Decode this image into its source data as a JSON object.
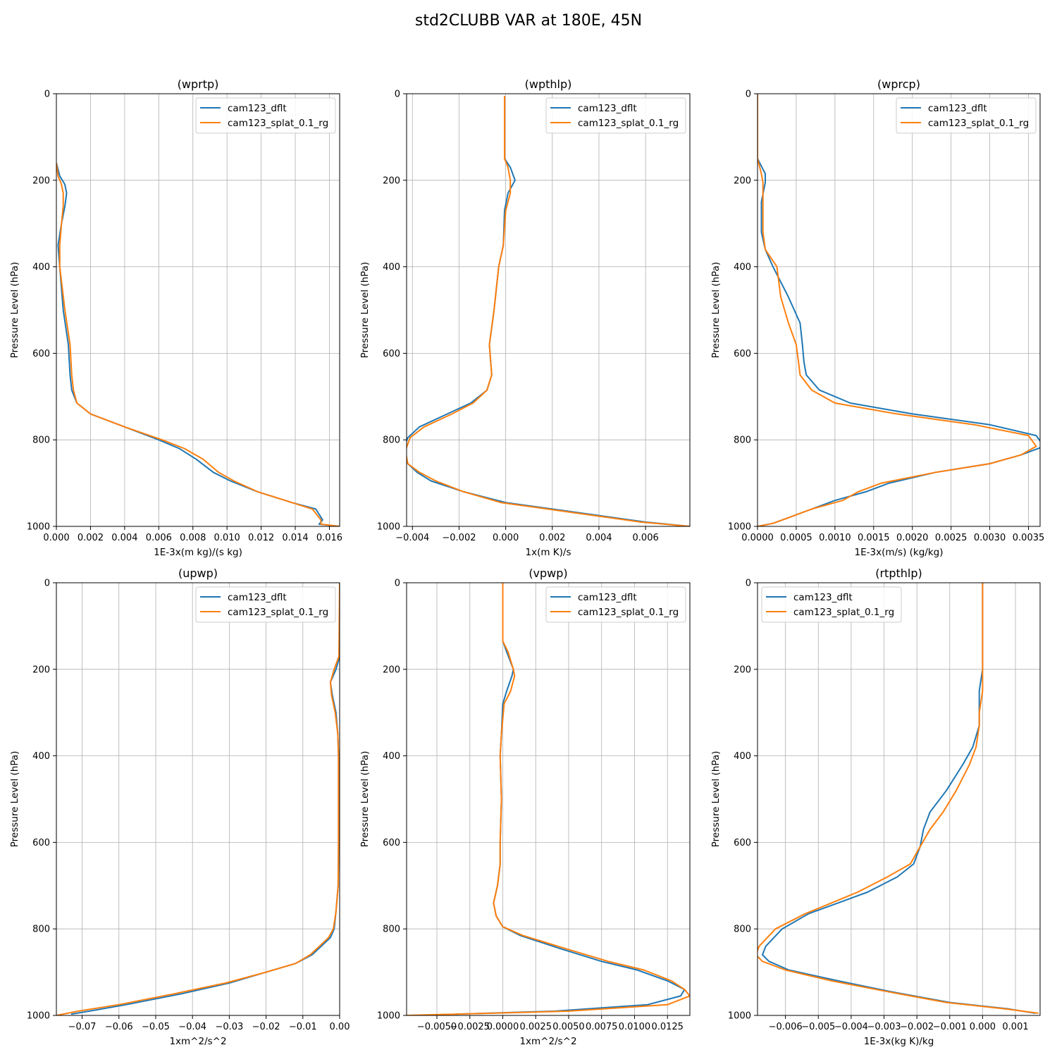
{
  "figure_title": "std2CLUBB VAR at 180E, 45N",
  "colors": {
    "dflt": "#1f77b4",
    "splat": "#ff7f0e",
    "grid": "#b0b0b0"
  },
  "chart_data": [
    {
      "type": "line",
      "title": "(wprtp)",
      "xlabel": "1E-3x(m kg)/(s kg)",
      "ylabel": "Pressure Level (hPa)",
      "xlim": [
        0.0,
        0.0166
      ],
      "ylim": [
        1000,
        0
      ],
      "xticks": [
        0.0,
        0.002,
        0.004,
        0.006,
        0.008,
        0.01,
        0.012,
        0.014,
        0.016
      ],
      "xtick_labels": [
        "0.000",
        "0.002",
        "0.004",
        "0.006",
        "0.008",
        "0.010",
        "0.012",
        "0.014",
        "0.016"
      ],
      "yticks": [
        0,
        200,
        400,
        600,
        800,
        1000
      ],
      "ytick_labels": [
        "0",
        "200",
        "400",
        "600",
        "800",
        "1000"
      ],
      "legend_loc": "upper right",
      "series": [
        {
          "name": "cam123_dflt",
          "y": [
            160,
            190,
            210,
            230,
            260,
            300,
            350,
            400,
            500,
            580,
            650,
            685,
            715,
            740,
            770,
            800,
            820,
            845,
            875,
            895,
            920,
            945,
            960,
            985,
            995,
            1000
          ],
          "x": [
            0.0,
            0.0002,
            0.0005,
            0.0006,
            0.0005,
            0.0003,
            0.0001,
            0.0002,
            0.0004,
            0.0007,
            0.0008,
            0.0009,
            0.0012,
            0.002,
            0.004,
            0.006,
            0.0072,
            0.0082,
            0.0092,
            0.0102,
            0.0118,
            0.0138,
            0.0152,
            0.0156,
            0.0154,
            0.0166
          ]
        },
        {
          "name": "cam123_splat_0.1_rg",
          "y": [
            160,
            190,
            210,
            230,
            260,
            300,
            350,
            400,
            500,
            580,
            650,
            685,
            715,
            740,
            770,
            800,
            820,
            845,
            875,
            895,
            920,
            945,
            960,
            985,
            995,
            1000
          ],
          "x": [
            0.0,
            0.0001,
            0.0003,
            0.0004,
            0.0004,
            0.0003,
            0.0002,
            0.0002,
            0.0005,
            0.0008,
            0.0009,
            0.001,
            0.0012,
            0.002,
            0.004,
            0.0062,
            0.0075,
            0.0086,
            0.0095,
            0.0104,
            0.0118,
            0.0138,
            0.015,
            0.0155,
            0.0155,
            0.0166
          ]
        }
      ]
    },
    {
      "type": "line",
      "title": "(wpthlp)",
      "xlabel": "1x(m K)/s",
      "ylabel": "Pressure Level (hPa)",
      "xlim": [
        -0.00425,
        0.0079
      ],
      "ylim": [
        1000,
        0
      ],
      "xticks": [
        -0.004,
        -0.002,
        0.0,
        0.002,
        0.004,
        0.006
      ],
      "xtick_labels": [
        "−0.004",
        "−0.002",
        "0.000",
        "0.002",
        "0.004",
        "0.006"
      ],
      "yticks": [
        0,
        200,
        400,
        600,
        800,
        1000
      ],
      "ytick_labels": [
        "0",
        "200",
        "400",
        "600",
        "800",
        "1000"
      ],
      "legend_loc": "upper right",
      "series": [
        {
          "name": "cam123_dflt",
          "y": [
            5,
            150,
            170,
            200,
            230,
            270,
            350,
            400,
            500,
            580,
            650,
            685,
            715,
            740,
            770,
            795,
            825,
            855,
            875,
            895,
            920,
            945,
            960,
            975,
            990,
            1000
          ],
          "x": [
            -5e-05,
            -5e-05,
            0.0002,
            0.0004,
            0.0001,
            -5e-05,
            -0.0001,
            -0.0003,
            -0.0005,
            -0.0007,
            -0.0006,
            -0.0008,
            -0.0015,
            -0.0025,
            -0.0037,
            -0.0042,
            -0.0044,
            -0.0042,
            -0.0038,
            -0.0032,
            -0.0018,
            0.0,
            0.002,
            0.004,
            0.006,
            0.0079
          ]
        },
        {
          "name": "cam123_splat_0.1_rg",
          "y": [
            5,
            150,
            170,
            200,
            230,
            270,
            350,
            400,
            500,
            580,
            650,
            685,
            715,
            740,
            770,
            795,
            825,
            855,
            875,
            895,
            920,
            945,
            960,
            975,
            990,
            1000
          ],
          "x": [
            -5e-05,
            -5e-05,
            0.0001,
            0.0002,
            0.0002,
            0.0,
            -0.0001,
            -0.0003,
            -0.0005,
            -0.0007,
            -0.0006,
            -0.0008,
            -0.0014,
            -0.0023,
            -0.0035,
            -0.0041,
            -0.0043,
            -0.0042,
            -0.0037,
            -0.003,
            -0.0018,
            -0.0002,
            0.0018,
            0.0038,
            0.0058,
            0.0079
          ]
        }
      ]
    },
    {
      "type": "line",
      "title": "(wprcp)",
      "xlabel": "1E-3x(m/s) (kg/kg)",
      "ylabel": "Pressure Level (hPa)",
      "xlim": [
        0.0,
        0.00365
      ],
      "ylim": [
        1000,
        0
      ],
      "xticks": [
        0.0,
        0.0005,
        0.001,
        0.0015,
        0.002,
        0.0025,
        0.003,
        0.0035
      ],
      "xtick_labels": [
        "0.0000",
        "0.0005",
        "0.0010",
        "0.0015",
        "0.0020",
        "0.0025",
        "0.0030",
        "0.0035"
      ],
      "yticks": [
        0,
        200,
        400,
        600,
        800,
        1000
      ],
      "ytick_labels": [
        "0",
        "200",
        "400",
        "600",
        "800",
        "1000"
      ],
      "legend_loc": "upper right",
      "series": [
        {
          "name": "cam123_dflt",
          "y": [
            0,
            150,
            185,
            205,
            250,
            320,
            360,
            400,
            470,
            530,
            580,
            620,
            650,
            685,
            715,
            740,
            765,
            790,
            815,
            835,
            855,
            875,
            900,
            920,
            940,
            960,
            980,
            993,
            1000
          ],
          "x": [
            0.0,
            0.0,
            0.0001,
            0.0001,
            5e-05,
            5e-05,
            0.0001,
            0.0002,
            0.0004,
            0.00055,
            0.00058,
            0.0006,
            0.00063,
            0.0008,
            0.0012,
            0.002,
            0.003,
            0.0036,
            0.0037,
            0.0034,
            0.003,
            0.0023,
            0.0017,
            0.0014,
            0.001,
            0.0007,
            0.0004,
            0.0002,
            0.0
          ]
        },
        {
          "name": "cam123_splat_0.1_rg",
          "y": [
            0,
            150,
            185,
            205,
            250,
            320,
            360,
            400,
            470,
            530,
            580,
            620,
            650,
            685,
            715,
            740,
            765,
            790,
            815,
            835,
            855,
            875,
            900,
            920,
            940,
            960,
            980,
            993,
            1000
          ],
          "x": [
            0.0,
            0.0,
            5e-05,
            7e-05,
            7e-05,
            7e-05,
            0.0001,
            0.00025,
            0.0003,
            0.0004,
            0.0005,
            0.00053,
            0.00055,
            0.0007,
            0.001,
            0.0018,
            0.0028,
            0.0035,
            0.0036,
            0.0034,
            0.003,
            0.0023,
            0.0016,
            0.0013,
            0.0011,
            0.0007,
            0.0004,
            0.0002,
            0.0
          ]
        }
      ]
    },
    {
      "type": "line",
      "title": "(upwp)",
      "xlabel": "1xm^2/s^2",
      "ylabel": "Pressure Level (hPa)",
      "xlim": [
        -0.077,
        0.0
      ],
      "ylim": [
        1000,
        0
      ],
      "xticks": [
        -0.07,
        -0.06,
        -0.05,
        -0.04,
        -0.03,
        -0.02,
        -0.01,
        0.0
      ],
      "xtick_labels": [
        "−0.07",
        "−0.06",
        "−0.05",
        "−0.04",
        "−0.03",
        "−0.02",
        "−0.01",
        "0.00"
      ],
      "yticks": [
        0,
        200,
        400,
        600,
        800,
        1000
      ],
      "ytick_labels": [
        "0",
        "200",
        "400",
        "600",
        "800",
        "1000"
      ],
      "legend_loc": "upper right",
      "series": [
        {
          "name": "cam123_dflt",
          "y": [
            0,
            170,
            200,
            230,
            260,
            300,
            350,
            400,
            600,
            700,
            760,
            800,
            820,
            840,
            860,
            880,
            900,
            925,
            950,
            975,
            990,
            997
          ],
          "x": [
            0.0,
            0.0,
            -0.001,
            -0.0025,
            -0.002,
            -0.001,
            -0.0005,
            -0.0003,
            -0.0003,
            -0.0004,
            -0.001,
            -0.0015,
            -0.0025,
            -0.005,
            -0.0075,
            -0.012,
            -0.02,
            -0.03,
            -0.043,
            -0.058,
            -0.068,
            -0.073
          ]
        },
        {
          "name": "cam123_splat_0.1_rg",
          "y": [
            0,
            170,
            200,
            230,
            260,
            300,
            350,
            400,
            600,
            700,
            760,
            800,
            820,
            840,
            860,
            880,
            900,
            925,
            950,
            975,
            990,
            1000
          ],
          "x": [
            0.0,
            -0.0002,
            -0.0015,
            -0.0025,
            -0.0022,
            -0.0012,
            -0.0005,
            -0.0003,
            -0.0003,
            -0.0004,
            -0.001,
            -0.0017,
            -0.003,
            -0.0055,
            -0.008,
            -0.012,
            -0.02,
            -0.031,
            -0.045,
            -0.06,
            -0.071,
            -0.077
          ]
        }
      ]
    },
    {
      "type": "line",
      "title": "(vpwp)",
      "xlabel": "1xm^2/s^2",
      "ylabel": "Pressure Level (hPa)",
      "xlim": [
        -0.0073,
        0.0142
      ],
      "ylim": [
        1000,
        0
      ],
      "xticks": [
        -0.005,
        -0.0025,
        0.0,
        0.0025,
        0.005,
        0.0075,
        0.01,
        0.0125
      ],
      "xtick_labels": [
        "−0.0050",
        "−0.0025",
        "0.0000",
        "0.0025",
        "0.0050",
        "0.0075",
        "0.0100",
        "0.0125"
      ],
      "yticks": [
        0,
        200,
        400,
        600,
        800,
        1000
      ],
      "ytick_labels": [
        "0",
        "200",
        "400",
        "600",
        "800",
        "1000"
      ],
      "legend_loc": "upper right",
      "series": [
        {
          "name": "cam123_dflt",
          "y": [
            0,
            135,
            160,
            200,
            215,
            250,
            280,
            350,
            400,
            500,
            600,
            650,
            700,
            740,
            770,
            795,
            815,
            845,
            875,
            895,
            920,
            940,
            955,
            975,
            990,
            997
          ],
          "x": [
            0.0,
            0.0,
            0.0003,
            0.0008,
            0.0007,
            0.0003,
            0.0,
            -0.0001,
            -0.0002,
            -0.0001,
            -0.0002,
            -0.0002,
            -0.0004,
            -0.0007,
            -0.0005,
            0.0,
            0.0013,
            0.0043,
            0.0075,
            0.0102,
            0.0125,
            0.0138,
            0.0135,
            0.011,
            0.004,
            -0.0036
          ]
        },
        {
          "name": "cam123_splat_0.1_rg",
          "y": [
            0,
            135,
            160,
            200,
            215,
            250,
            280,
            350,
            400,
            500,
            600,
            650,
            700,
            740,
            770,
            795,
            815,
            845,
            875,
            895,
            920,
            940,
            955,
            975,
            990,
            1000
          ],
          "x": [
            0.0,
            0.0,
            0.0004,
            0.0008,
            0.0009,
            0.0006,
            0.0001,
            -0.0001,
            -0.0002,
            -0.0001,
            -0.0002,
            -0.0002,
            -0.0004,
            -0.0007,
            -0.0005,
            0.0,
            0.0015,
            0.0047,
            0.008,
            0.0107,
            0.0128,
            0.0138,
            0.0142,
            0.0125,
            0.005,
            -0.0073
          ]
        }
      ]
    },
    {
      "type": "line",
      "title": "(rtpthlp)",
      "xlabel": "1E-3x(kg K)/kg",
      "ylabel": "Pressure Level (hPa)",
      "xlim": [
        -0.00685,
        0.00175
      ],
      "ylim": [
        1000,
        0
      ],
      "xticks": [
        -0.006,
        -0.005,
        -0.004,
        -0.003,
        -0.002,
        -0.001,
        0.0,
        0.001
      ],
      "xtick_labels": [
        "−0.006",
        "−0.005",
        "−0.004",
        "−0.003",
        "−0.002",
        "−0.001",
        "0.000",
        "0.001"
      ],
      "yticks": [
        0,
        200,
        400,
        600,
        800,
        1000
      ],
      "ytick_labels": [
        "0",
        "200",
        "400",
        "600",
        "800",
        "1000"
      ],
      "legend_loc": "upper left",
      "series": [
        {
          "name": "cam123_dflt",
          "y": [
            0,
            200,
            250,
            300,
            330,
            380,
            420,
            480,
            530,
            570,
            610,
            650,
            680,
            715,
            740,
            765,
            800,
            840,
            860,
            875,
            895,
            920,
            945,
            970,
            985,
            995
          ],
          "x": [
            0.0,
            0.0,
            -0.0001,
            -0.0001,
            -0.0001,
            -0.0003,
            -0.0006,
            -0.0011,
            -0.0016,
            -0.0018,
            -0.0019,
            -0.0021,
            -0.0026,
            -0.0035,
            -0.0044,
            -0.0053,
            -0.0061,
            -0.0066,
            -0.0067,
            -0.0065,
            -0.0059,
            -0.0044,
            -0.0028,
            -0.001,
            0.0008,
            0.0016
          ]
        },
        {
          "name": "cam123_splat_0.1_rg",
          "y": [
            0,
            200,
            250,
            300,
            330,
            380,
            420,
            480,
            530,
            570,
            610,
            650,
            680,
            715,
            740,
            765,
            800,
            840,
            860,
            875,
            895,
            920,
            945,
            970,
            985,
            995
          ],
          "x": [
            0.0,
            0.0,
            0.0,
            -0.0001,
            -0.0001,
            -0.0002,
            -0.0004,
            -0.0008,
            -0.0012,
            -0.0016,
            -0.0019,
            -0.0022,
            -0.0029,
            -0.0038,
            -0.0046,
            -0.0054,
            -0.0063,
            -0.0068,
            -0.0069,
            -0.0067,
            -0.006,
            -0.0046,
            -0.0029,
            -0.0011,
            0.0007,
            0.0017
          ]
        }
      ]
    }
  ]
}
